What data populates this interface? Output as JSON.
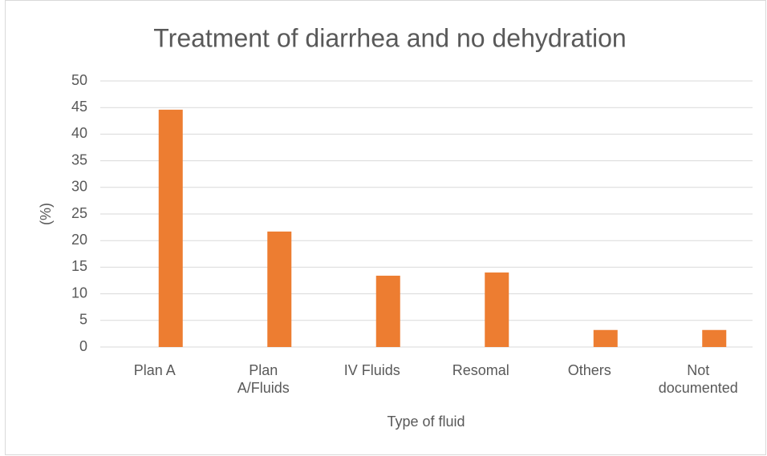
{
  "chart_data": {
    "type": "bar",
    "title": "Treatment of diarrhea and no dehydration",
    "x_label": "Type of fluid",
    "y_label": "(%)",
    "categories": [
      "Plan A",
      "Plan A/Fluids",
      "IV Fluids",
      "Resomal",
      "Others",
      "Not documented"
    ],
    "values": [
      44.6,
      21.7,
      13.4,
      14.0,
      3.2,
      3.2
    ],
    "color": "#ed7d31",
    "ylim": [
      0,
      50
    ],
    "yticks": [
      0,
      5,
      10,
      15,
      20,
      25,
      30,
      35,
      40,
      45,
      50
    ],
    "grid": true
  }
}
